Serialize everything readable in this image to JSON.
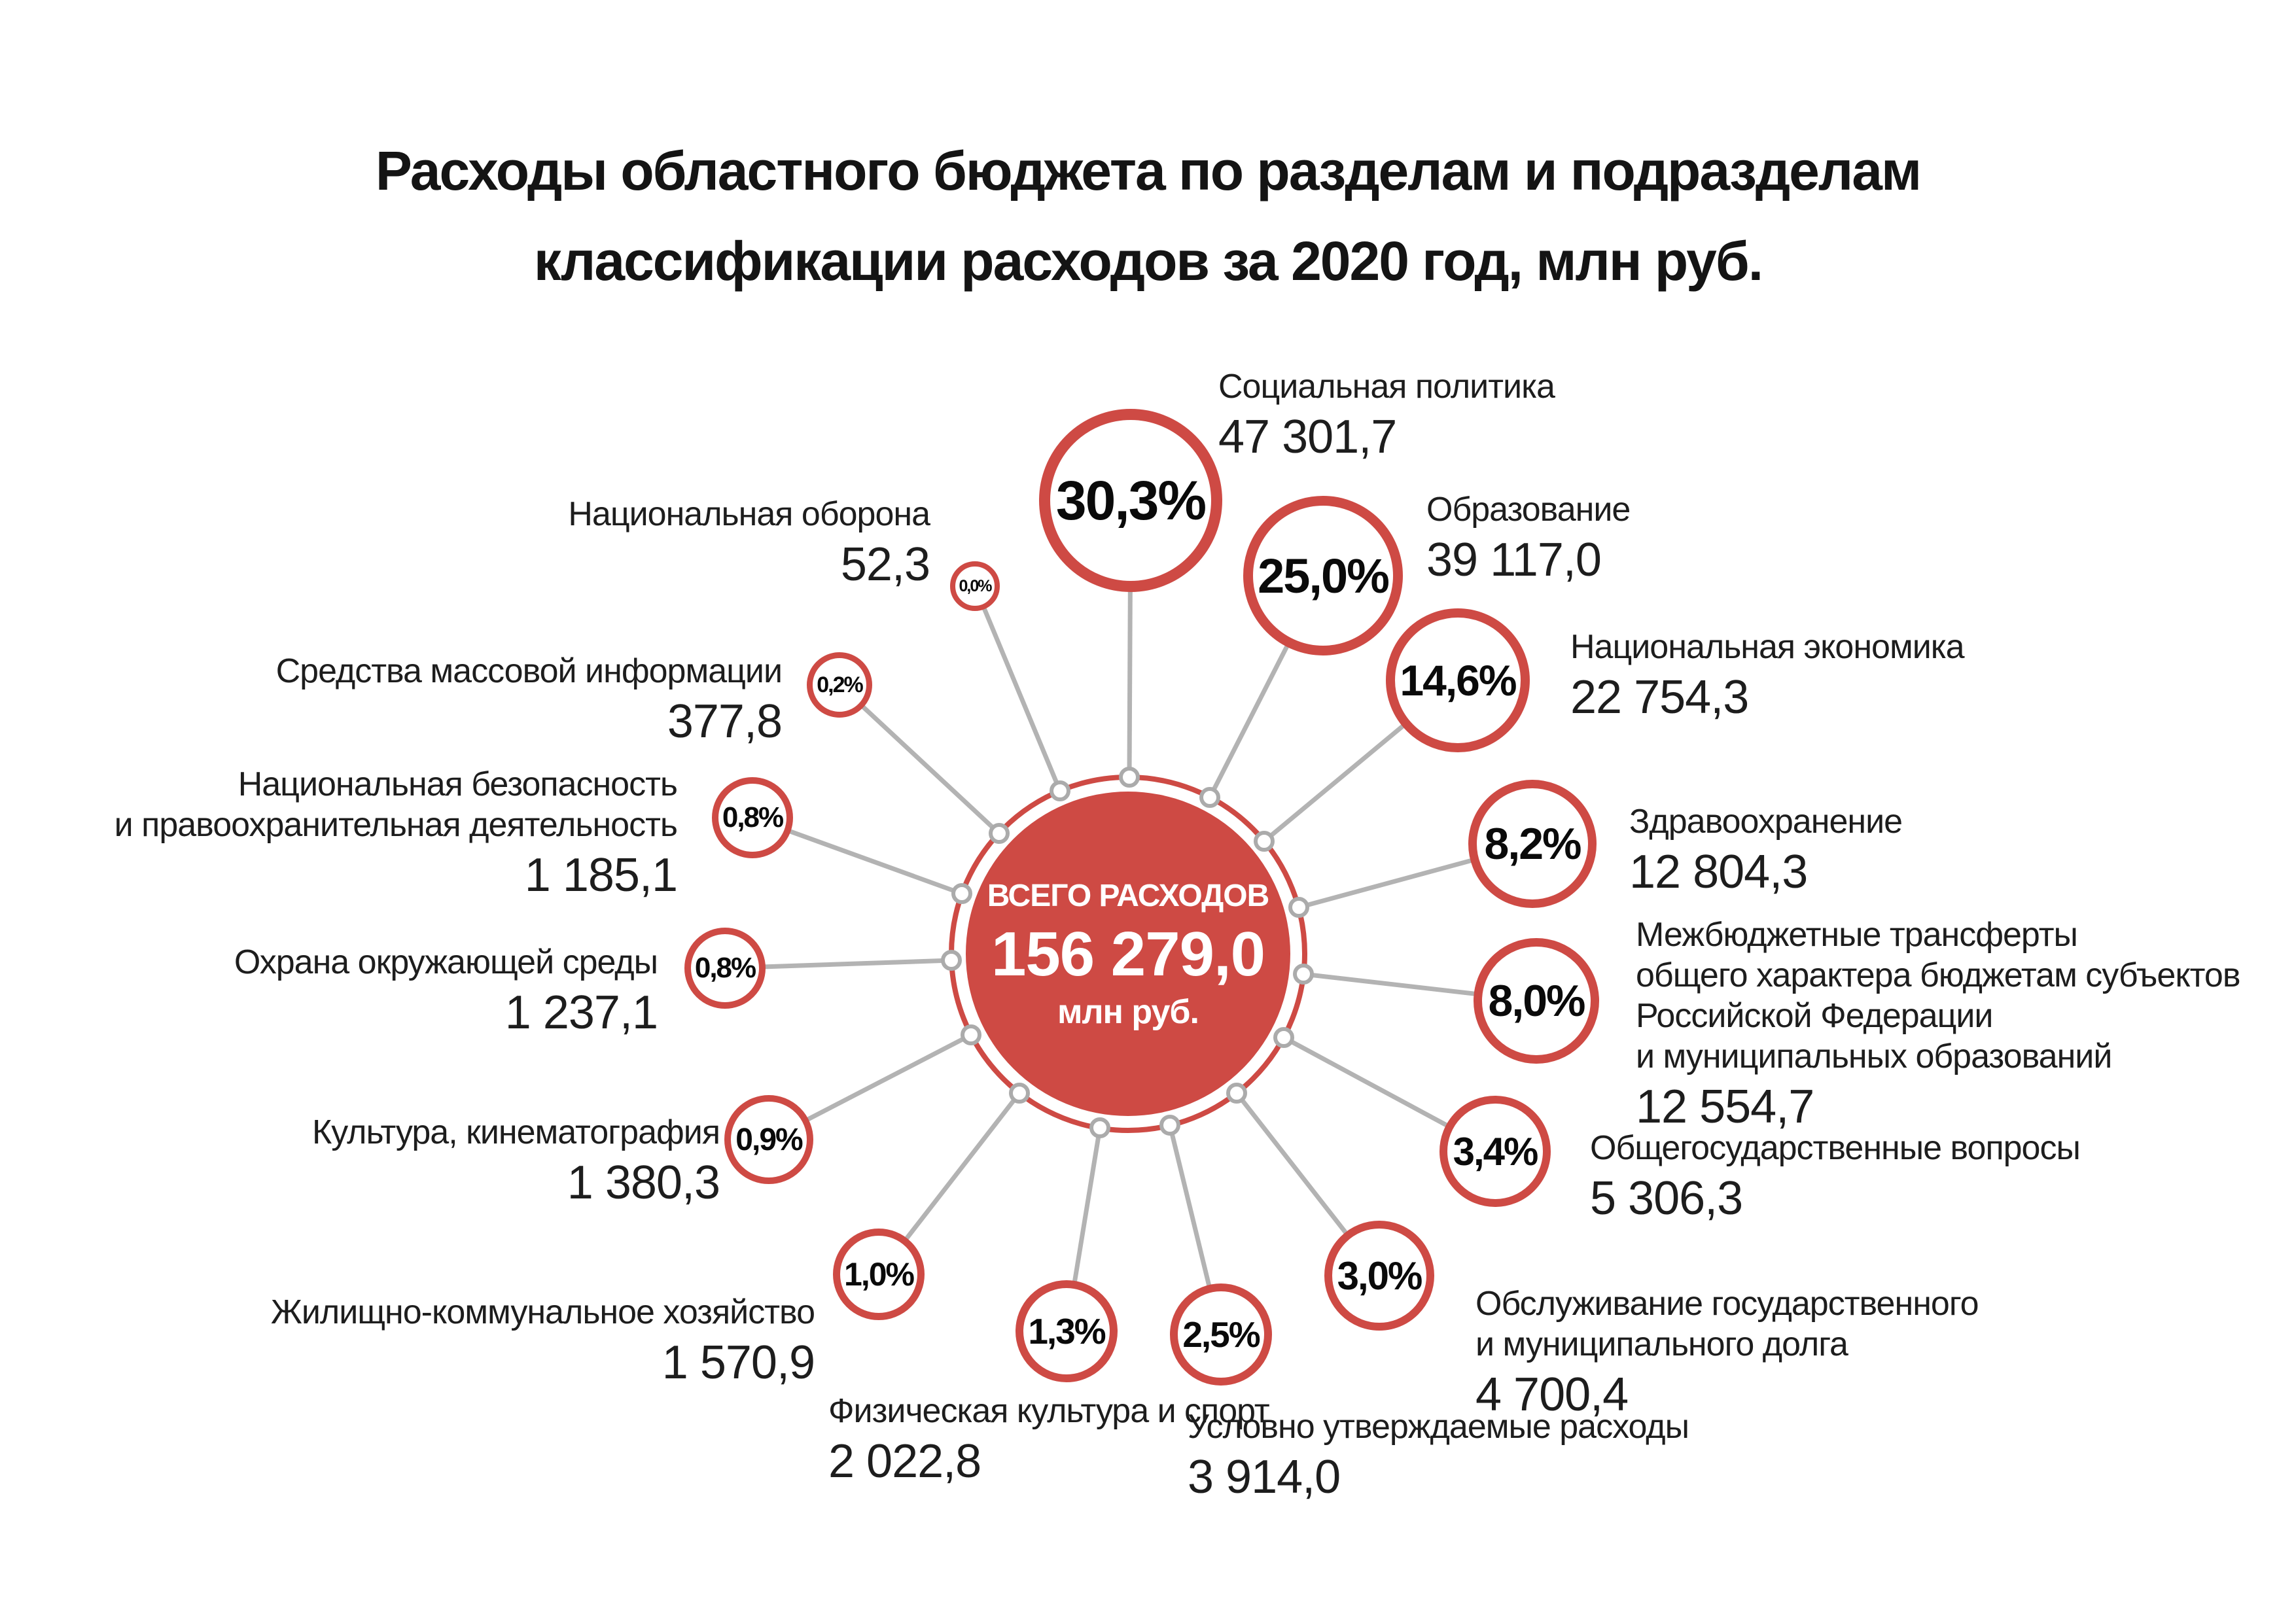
{
  "title": {
    "line1": "Расходы областного бюджета по разделам и подразделам",
    "line2": "классификации расходов за 2020 год, млн руб."
  },
  "colors": {
    "accent_red": "#CE4A44",
    "connector_gray": "#B3B3B3",
    "node_gray": "#ABABAB",
    "text_dark": "#1D1D1D",
    "percent_black": "#0A0A0A",
    "background": "#FFFFFF"
  },
  "chart_data": {
    "type": "radial-bubble",
    "title": "Расходы областного бюджета по разделам и подразделам классификации расходов за 2020 год, млн руб.",
    "unit": "млн руб.",
    "legend_position": "around-center",
    "total": {
      "label": "ВСЕГО РАСХОДОВ",
      "value": 156279.0,
      "value_display": "156 279,0",
      "unit": "млн руб."
    },
    "items": [
      {
        "label": "Социальная политика",
        "label_lines": [
          "Социальная политика"
        ],
        "value": 47301.7,
        "value_display": "47 301,7",
        "percent": 30.3,
        "percent_display": "30,3%"
      },
      {
        "label": "Образование",
        "label_lines": [
          "Образование"
        ],
        "value": 39117.0,
        "value_display": "39 117,0",
        "percent": 25.0,
        "percent_display": "25,0%"
      },
      {
        "label": "Национальная экономика",
        "label_lines": [
          "Национальная экономика"
        ],
        "value": 22754.3,
        "value_display": "22 754,3",
        "percent": 14.6,
        "percent_display": "14,6%"
      },
      {
        "label": "Здравоохранение",
        "label_lines": [
          "Здравоохранение"
        ],
        "value": 12804.3,
        "value_display": "12 804,3",
        "percent": 8.2,
        "percent_display": "8,2%"
      },
      {
        "label": "Межбюджетные трансферты общего характера бюджетам субъектов Российской Федерации и муниципальных образований",
        "label_lines": [
          "Межбюджетные трансферты",
          "общего характера бюджетам субъектов",
          "Российской Федерации",
          "и муниципальных образований"
        ],
        "value": 12554.7,
        "value_display": "12 554,7",
        "percent": 8.0,
        "percent_display": "8,0%"
      },
      {
        "label": "Общегосударственные вопросы",
        "label_lines": [
          "Общегосударственные вопросы"
        ],
        "value": 5306.3,
        "value_display": "5 306,3",
        "percent": 3.4,
        "percent_display": "3,4%"
      },
      {
        "label": "Обслуживание государственного и муниципального долга",
        "label_lines": [
          "Обслуживание государственного",
          "и муниципального долга"
        ],
        "value": 4700.4,
        "value_display": "4 700,4",
        "percent": 3.0,
        "percent_display": "3,0%"
      },
      {
        "label": "Условно утверждаемые расходы",
        "label_lines": [
          "Условно утверждаемые расходы"
        ],
        "value": 3914.0,
        "value_display": "3 914,0",
        "percent": 2.5,
        "percent_display": "2,5%"
      },
      {
        "label": "Физическая культура и спорт",
        "label_lines": [
          "Физическая культура и спорт"
        ],
        "value": 2022.8,
        "value_display": "2 022,8",
        "percent": 1.3,
        "percent_display": "1,3%"
      },
      {
        "label": "Жилищно-коммунальное хозяйство",
        "label_lines": [
          "Жилищно-коммунальное хозяйство"
        ],
        "value": 1570.9,
        "value_display": "1 570,9",
        "percent": 1.0,
        "percent_display": "1,0%"
      },
      {
        "label": "Культура, кинематография",
        "label_lines": [
          "Культура, кинематография"
        ],
        "value": 1380.3,
        "value_display": "1 380,3",
        "percent": 0.9,
        "percent_display": "0,9%"
      },
      {
        "label": "Охрана окружающей среды",
        "label_lines": [
          "Охрана окружающей среды"
        ],
        "value": 1237.1,
        "value_display": "1 237,1",
        "percent": 0.8,
        "percent_display": "0,8%"
      },
      {
        "label": "Национальная безопасность и правоохранительная деятельность",
        "label_lines": [
          "Национальная безопасность",
          "и правоохранительная деятельность"
        ],
        "value": 1185.1,
        "value_display": "1 185,1",
        "percent": 0.8,
        "percent_display": "0,8%"
      },
      {
        "label": "Средства массовой информации",
        "label_lines": [
          "Средства массовой информации"
        ],
        "value": 377.8,
        "value_display": "377,8",
        "percent": 0.2,
        "percent_display": "0,2%"
      },
      {
        "label": "Национальная оборона",
        "label_lines": [
          "Национальная оборона"
        ],
        "value": 52.3,
        "value_display": "52,3",
        "percent": 0.0,
        "percent_display": "0,0%"
      }
    ]
  }
}
